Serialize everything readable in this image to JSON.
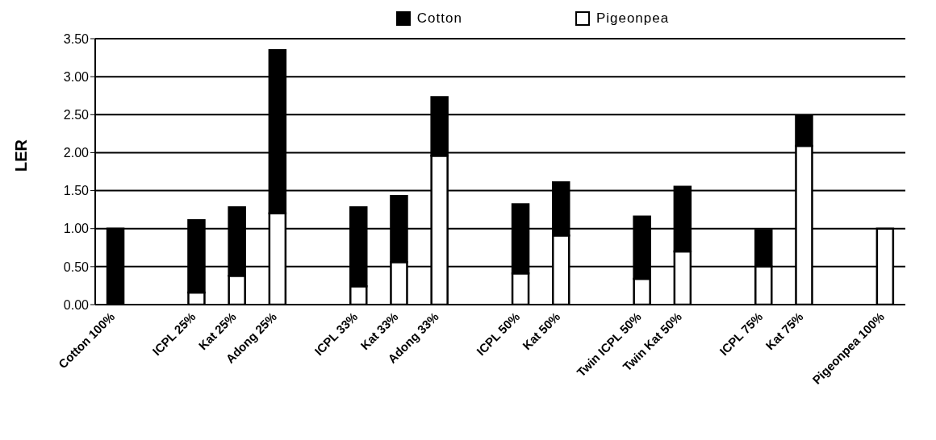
{
  "chart_data": {
    "type": "bar",
    "stacked": true,
    "ylabel": "LER",
    "categories": [
      "Cotton 100%",
      null,
      "ICPL 25%",
      "Kat 25%",
      "Adong 25%",
      null,
      "ICPL 33%",
      "Kat 33%",
      "Adong 33%",
      null,
      "ICPL 50%",
      "Kat 50%",
      null,
      "Twin ICPL 50%",
      "Twin Kat 50%",
      null,
      "ICPL 75%",
      "Kat 75%",
      null,
      "Pigeonpea 100%"
    ],
    "series": [
      {
        "name": "Pigeonpea",
        "color": "#ffffff",
        "values": [
          0,
          null,
          0.16,
          0.38,
          1.2,
          null,
          0.24,
          0.56,
          1.96,
          null,
          0.41,
          0.91,
          null,
          0.34,
          0.7,
          null,
          0.5,
          2.09,
          null,
          1.0
        ]
      },
      {
        "name": "Cotton",
        "color": "#000000",
        "values": [
          1.0,
          null,
          0.95,
          0.9,
          2.15,
          null,
          1.04,
          0.87,
          0.77,
          null,
          0.91,
          0.7,
          null,
          0.82,
          0.85,
          null,
          0.48,
          0.39,
          null,
          0
        ]
      }
    ],
    "ylim": [
      0,
      3.5
    ],
    "yticks": [
      {
        "value": 0,
        "label": "0.00"
      },
      {
        "value": 0.5,
        "label": "0.50"
      },
      {
        "value": 1,
        "label": "1.00"
      },
      {
        "value": 1.5,
        "label": "1.50"
      },
      {
        "value": 2,
        "label": "2.00"
      },
      {
        "value": 2.5,
        "label": "2.50"
      },
      {
        "value": 3,
        "label": "3.00"
      },
      {
        "value": 3.5,
        "label": "3.50"
      }
    ],
    "grid": "y",
    "legend": "top"
  }
}
